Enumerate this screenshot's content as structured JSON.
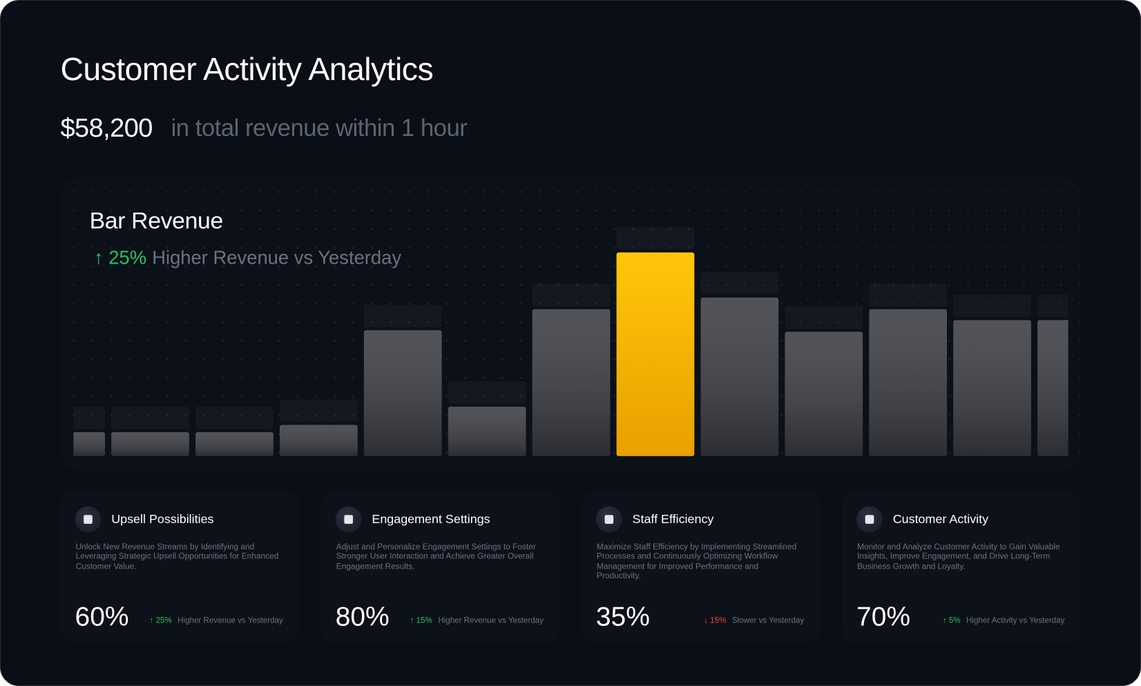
{
  "header": {
    "title": "Customer Activity Analytics",
    "revenue": "$58,200",
    "revenue_caption": "in total revenue within 1 hour"
  },
  "chart_data": {
    "type": "bar",
    "title": "Bar Revenue",
    "change": "25%",
    "change_caption": "Higher Revenue vs Yesterday",
    "categories": [
      null,
      null,
      null,
      null,
      null,
      null,
      null,
      null,
      null,
      null,
      null,
      null,
      null
    ],
    "values": [
      33,
      33,
      33,
      43,
      173,
      68,
      202,
      280,
      218,
      171,
      202,
      187,
      187
    ],
    "ylim": [
      0,
      300
    ],
    "color": "#3a3c43",
    "highlight_index": 7,
    "highlight_color": "#ffc107"
  },
  "cards": [
    {
      "title": "Upsell Possibilities",
      "description": "Unlock New Revenue Streams by Identifying and Leveraging Strategic Upsell Opportunities for Enhanced Customer Value.",
      "value": "60%",
      "change": "25%",
      "change_caption": "Higher Revenue vs Yesterday",
      "trend": "up"
    },
    {
      "title": "Engagement Settings",
      "description": "Adjust and Personalize Engagement Settings to Foster Stronger User Interaction and Achieve Greater Overall Engagement Results.",
      "value": "80%",
      "change": "15%",
      "change_caption": "Higher Revenue vs Yesterday",
      "trend": "up"
    },
    {
      "title": "Staff Efficiency",
      "description": "Maximize Staff Efficiency by Implementing Streamlined Processes and Continuously Optimizing Workflow Management for Improved Performance and Productivity.",
      "value": "35%",
      "change": "15%",
      "change_caption": "Slower vs Yesterday",
      "trend": "down"
    },
    {
      "title": "Customer Activity",
      "description": "Monitor and Analyze Customer Activity to Gain Valuable Insights, Improve Engagement, and Drive Long-Term Business Growth and Loyalty.",
      "value": "70%",
      "change": "5%",
      "change_caption": "Higher Activity vs Yesterday",
      "trend": "up"
    }
  ]
}
